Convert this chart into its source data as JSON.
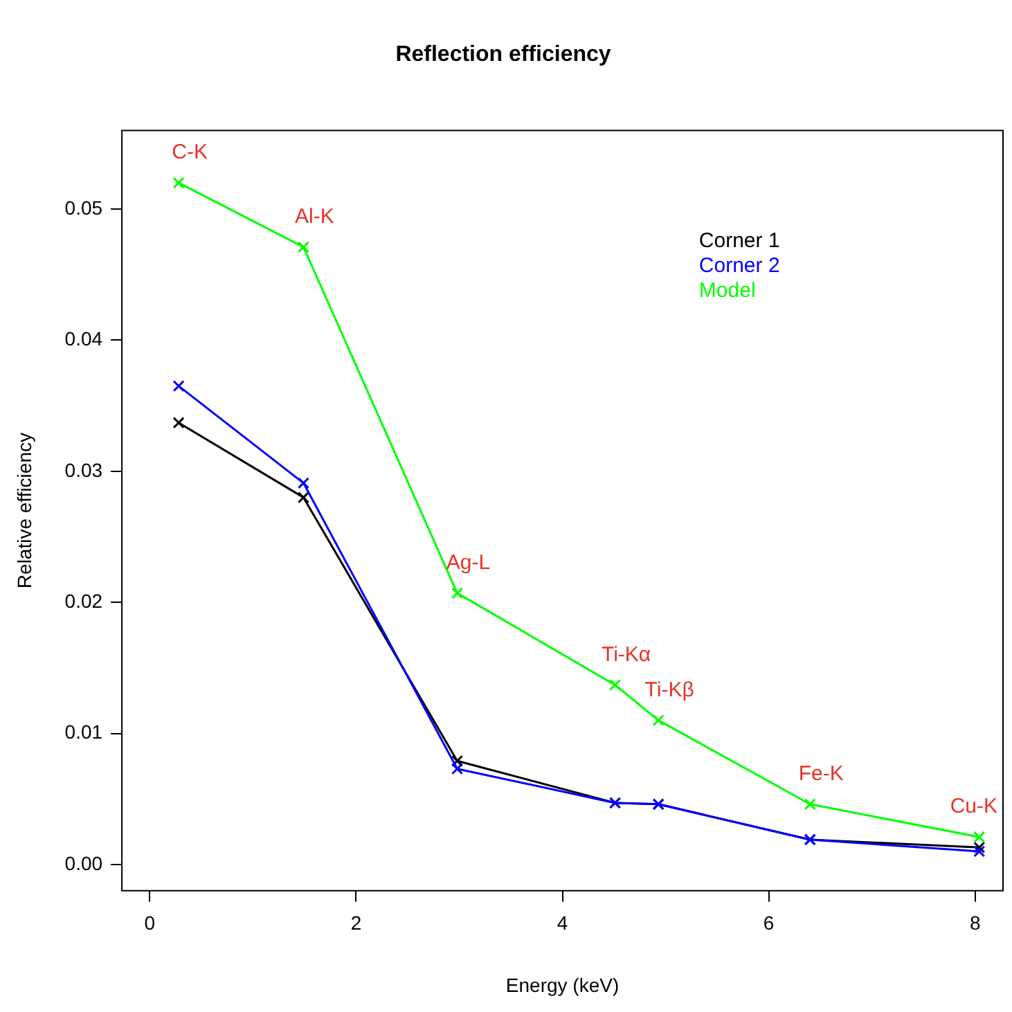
{
  "chart_data": {
    "type": "line",
    "title": "Reflection efficiency",
    "xlabel": "Energy (keV)",
    "ylabel": "Relative efficiency",
    "x": [
      0.28,
      1.49,
      2.98,
      4.51,
      4.93,
      6.4,
      8.04
    ],
    "series": [
      {
        "name": "Corner 1",
        "color": "#000000",
        "values": [
          0.0337,
          0.028,
          0.0079,
          0.0047,
          0.0046,
          0.0019,
          0.0013
        ]
      },
      {
        "name": "Corner 2",
        "color": "#0000ff",
        "values": [
          0.0365,
          0.0291,
          0.0073,
          0.0047,
          0.0046,
          0.0019,
          0.001
        ]
      },
      {
        "name": "Model",
        "color": "#00ff00",
        "values": [
          0.052,
          0.0471,
          0.0207,
          0.0137,
          0.011,
          0.0046,
          0.0021
        ]
      }
    ],
    "annotations": [
      {
        "text": "C-K",
        "x": 0.28,
        "y": 0.052
      },
      {
        "text": "Al-K",
        "x": 1.49,
        "y": 0.0471
      },
      {
        "text": "Ag-L",
        "x": 2.98,
        "y": 0.0207
      },
      {
        "text": "Ti-Kα",
        "x": 4.51,
        "y": 0.0137
      },
      {
        "text": "Ti-Kβ",
        "x": 4.93,
        "y": 0.011
      },
      {
        "text": "Fe-K",
        "x": 6.4,
        "y": 0.0046
      },
      {
        "text": "Cu-K",
        "x": 8.04,
        "y": 0.0021
      }
    ],
    "xlim": [
      -0.27,
      8.27
    ],
    "xticks": [
      0,
      2,
      4,
      6,
      8
    ],
    "ylim": [
      -0.002,
      0.056
    ],
    "yticks": [
      {
        "value": 0,
        "label": "0.00"
      },
      {
        "value": 0.01,
        "label": "0.01"
      },
      {
        "value": 0.02,
        "label": "0.02"
      },
      {
        "value": 0.03,
        "label": "0.03"
      },
      {
        "value": 0.04,
        "label": "0.04"
      },
      {
        "value": 0.05,
        "label": "0.05"
      }
    ],
    "grid": false,
    "legend": "top right",
    "marker": "cross",
    "line_style": "solid"
  }
}
